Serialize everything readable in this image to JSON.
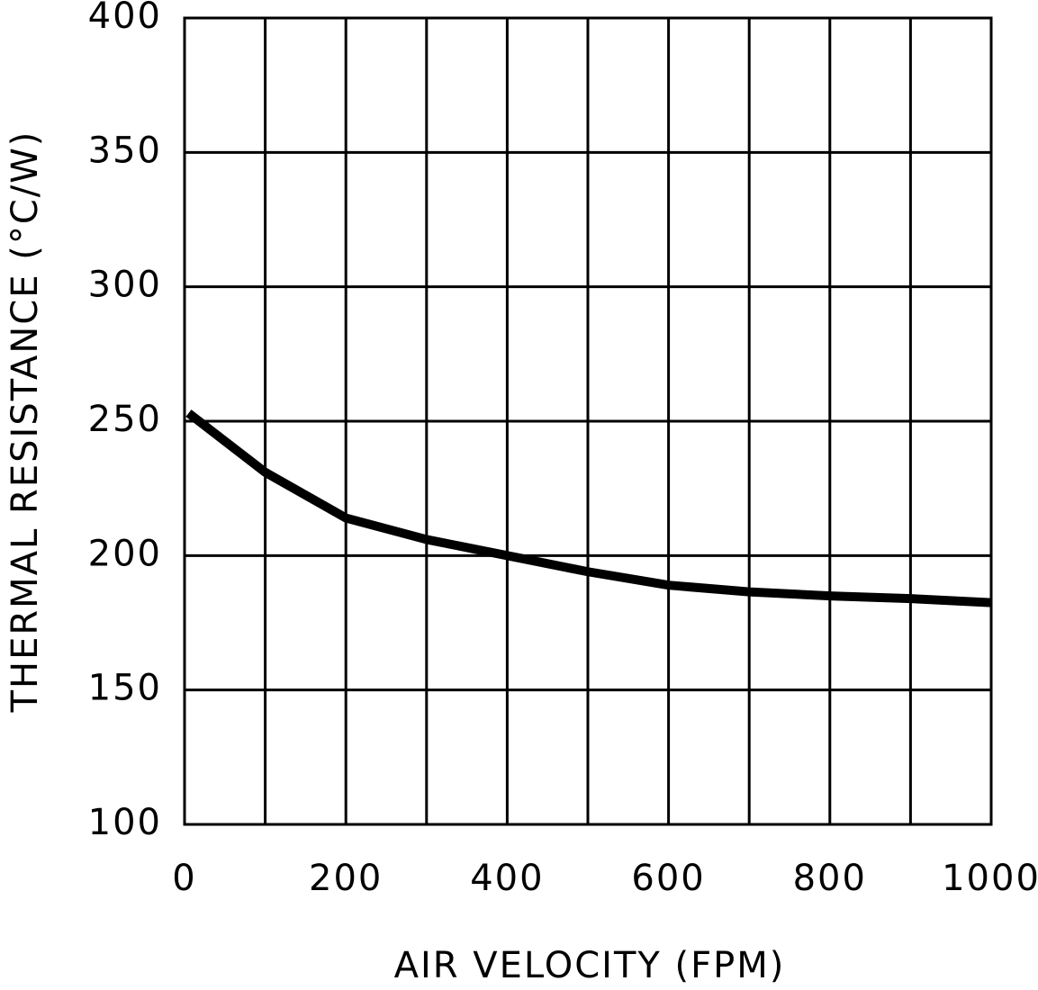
{
  "chart_data": {
    "type": "line",
    "xlabel": "AIR VELOCITY (FPM)",
    "ylabel": "THERMAL RESISTANCE (°C/W)",
    "x": [
      5,
      100,
      200,
      300,
      400,
      500,
      600,
      700,
      800,
      900,
      1000
    ],
    "series": [
      {
        "color": "#000000",
        "values": [
          253,
          231,
          214,
          206,
          200,
          194,
          189,
          186.5,
          185,
          184,
          182.5
        ]
      }
    ],
    "xlim": [
      0,
      1000
    ],
    "xticks": [
      0,
      200,
      400,
      600,
      800,
      1000
    ],
    "x_minor_ticks": [
      100,
      300,
      500,
      700,
      900
    ],
    "ylim": [
      100,
      400
    ],
    "yticks": [
      100,
      150,
      200,
      250,
      300,
      350,
      400
    ],
    "grid": true
  }
}
